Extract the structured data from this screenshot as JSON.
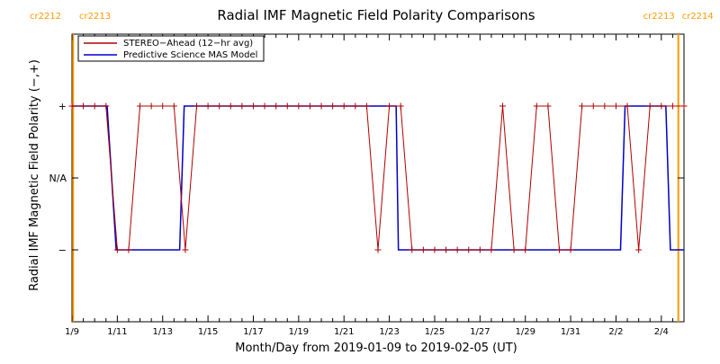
{
  "chart_data": {
    "type": "line",
    "title": "Radial IMF Magnetic Field Polarity Comparisons",
    "xlabel": "Month/Day from 2019-01-09 to 2019-02-05 (UT)",
    "ylabel": "Radial IMF Magnetic Field Polarity (−,+)",
    "x_unit": "days after 2019-01-09 00:00 UT",
    "xlim": [
      0,
      27
    ],
    "ylim": [
      -2,
      2
    ],
    "xticks": [
      {
        "x": 0,
        "label": "1/9"
      },
      {
        "x": 2,
        "label": "1/11"
      },
      {
        "x": 4,
        "label": "1/13"
      },
      {
        "x": 6,
        "label": "1/15"
      },
      {
        "x": 8,
        "label": "1/17"
      },
      {
        "x": 10,
        "label": "1/19"
      },
      {
        "x": 12,
        "label": "1/21"
      },
      {
        "x": 14,
        "label": "1/23"
      },
      {
        "x": 16,
        "label": "1/25"
      },
      {
        "x": 18,
        "label": "1/27"
      },
      {
        "x": 20,
        "label": "1/29"
      },
      {
        "x": 22,
        "label": "1/31"
      },
      {
        "x": 24,
        "label": "2/2"
      },
      {
        "x": 26,
        "label": "2/4"
      }
    ],
    "yticks": [
      {
        "y": 1,
        "label": "+"
      },
      {
        "y": 0,
        "label": "N/A"
      },
      {
        "y": -1,
        "label": "−"
      }
    ],
    "carrington_markers": [
      {
        "x": 0.05,
        "left_label": "cr2212",
        "right_label": "cr2213",
        "color": "#ff9900"
      },
      {
        "x": 26.75,
        "left_label": "cr2213",
        "right_label": "cr2214",
        "color": "#ff9900"
      }
    ],
    "legend_position": "top-left",
    "series": [
      {
        "name": "STEREO−Ahead (12−hr avg)",
        "color": "#b00000",
        "markers": "plus",
        "points": [
          [
            0,
            1
          ],
          [
            0.5,
            1
          ],
          [
            1,
            1
          ],
          [
            1.5,
            1
          ],
          [
            2,
            -1
          ],
          [
            2.5,
            -1
          ],
          [
            3,
            1
          ],
          [
            3.5,
            1
          ],
          [
            4,
            1
          ],
          [
            4.5,
            1
          ],
          [
            5,
            -1
          ],
          [
            5.5,
            1
          ],
          [
            6,
            1
          ],
          [
            6.5,
            1
          ],
          [
            7,
            1
          ],
          [
            7.5,
            1
          ],
          [
            8,
            1
          ],
          [
            8.5,
            1
          ],
          [
            9,
            1
          ],
          [
            9.5,
            1
          ],
          [
            10,
            1
          ],
          [
            10.5,
            1
          ],
          [
            11,
            1
          ],
          [
            11.5,
            1
          ],
          [
            12,
            1
          ],
          [
            12.5,
            1
          ],
          [
            13,
            1
          ],
          [
            13.5,
            -1
          ],
          [
            14,
            1
          ],
          [
            14.5,
            1
          ],
          [
            15,
            -1
          ],
          [
            15.5,
            -1
          ],
          [
            16,
            -1
          ],
          [
            16.5,
            -1
          ],
          [
            17,
            -1
          ],
          [
            17.5,
            -1
          ],
          [
            18,
            -1
          ],
          [
            18.5,
            -1
          ],
          [
            19,
            1
          ],
          [
            19.5,
            -1
          ],
          [
            20,
            -1
          ],
          [
            20.5,
            1
          ],
          [
            21,
            1
          ],
          [
            21.5,
            -1
          ],
          [
            22,
            -1
          ],
          [
            22.5,
            1
          ],
          [
            23,
            1
          ],
          [
            23.5,
            1
          ],
          [
            24,
            1
          ],
          [
            24.5,
            1
          ],
          [
            25,
            -1
          ],
          [
            25.5,
            1
          ],
          [
            26,
            1
          ],
          [
            26.5,
            1
          ],
          [
            27,
            1
          ]
        ]
      },
      {
        "name": "Predictive Science MAS Model",
        "color": "#0000c8",
        "markers": "none",
        "points": [
          [
            0,
            1
          ],
          [
            1.55,
            1
          ],
          [
            1.95,
            -1
          ],
          [
            4.75,
            -1
          ],
          [
            4.95,
            1
          ],
          [
            14.3,
            1
          ],
          [
            14.4,
            -1
          ],
          [
            24.2,
            -1
          ],
          [
            24.4,
            1
          ],
          [
            26.2,
            1
          ],
          [
            26.4,
            -1
          ],
          [
            27,
            -1
          ]
        ]
      }
    ]
  }
}
